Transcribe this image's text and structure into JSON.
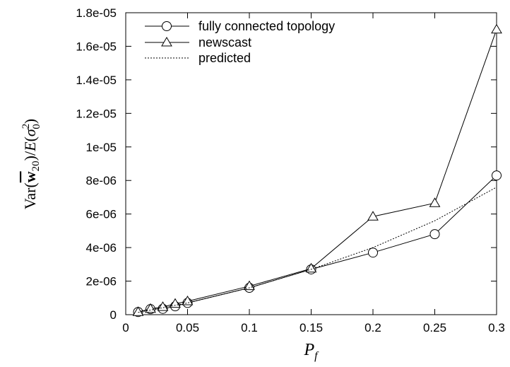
{
  "chart_data": {
    "type": "line",
    "xlabel": "P_f",
    "ylabel": "Var(w̄₂₀)/E(σ₀²)",
    "xlim": [
      0,
      0.3
    ],
    "ylim": [
      0,
      1.8e-05
    ],
    "xticks": [
      0,
      0.05,
      0.1,
      0.15,
      0.2,
      0.25,
      0.3
    ],
    "xtick_labels": [
      "0",
      "0.05",
      "0.1",
      "0.15",
      "0.2",
      "0.25",
      "0.3"
    ],
    "yticks": [
      0,
      2e-06,
      4e-06,
      6e-06,
      8e-06,
      1e-05,
      1.2e-05,
      1.4e-05,
      1.6e-05,
      1.8e-05
    ],
    "ytick_labels": [
      "0",
      "2e-06",
      "4e-06",
      "6e-06",
      "8e-06",
      "1e-05",
      "1.2e-05",
      "1.4e-05",
      "1.6e-05",
      "1.8e-05"
    ],
    "grid": false,
    "legend_position": "top-left",
    "series": [
      {
        "name": "fully connected topology",
        "marker": "circle",
        "line": "solid",
        "x": [
          0.01,
          0.02,
          0.03,
          0.04,
          0.05,
          0.1,
          0.15,
          0.2,
          0.25,
          0.3
        ],
        "y": [
          1.6e-07,
          3.3e-07,
          3.5e-07,
          5e-07,
          7e-07,
          1.6e-06,
          2.7e-06,
          3.7e-06,
          4.8e-06,
          8.3e-06
        ]
      },
      {
        "name": "newscast",
        "marker": "triangle",
        "line": "solid",
        "x": [
          0.01,
          0.02,
          0.03,
          0.04,
          0.05,
          0.1,
          0.15,
          0.2,
          0.25,
          0.3
        ],
        "y": [
          1.6e-07,
          3.5e-07,
          4.6e-07,
          6.5e-07,
          8e-07,
          1.7e-06,
          2.75e-06,
          5.85e-06,
          6.65e-06,
          1.7e-05
        ]
      },
      {
        "name": "predicted",
        "marker": "none",
        "line": "dotted",
        "x": [
          0.01,
          0.05,
          0.1,
          0.15,
          0.2,
          0.25,
          0.3
        ],
        "y": [
          1.3e-07,
          7e-07,
          1.6e-06,
          2.7e-06,
          4e-06,
          5.6e-06,
          7.6e-06
        ]
      }
    ]
  }
}
